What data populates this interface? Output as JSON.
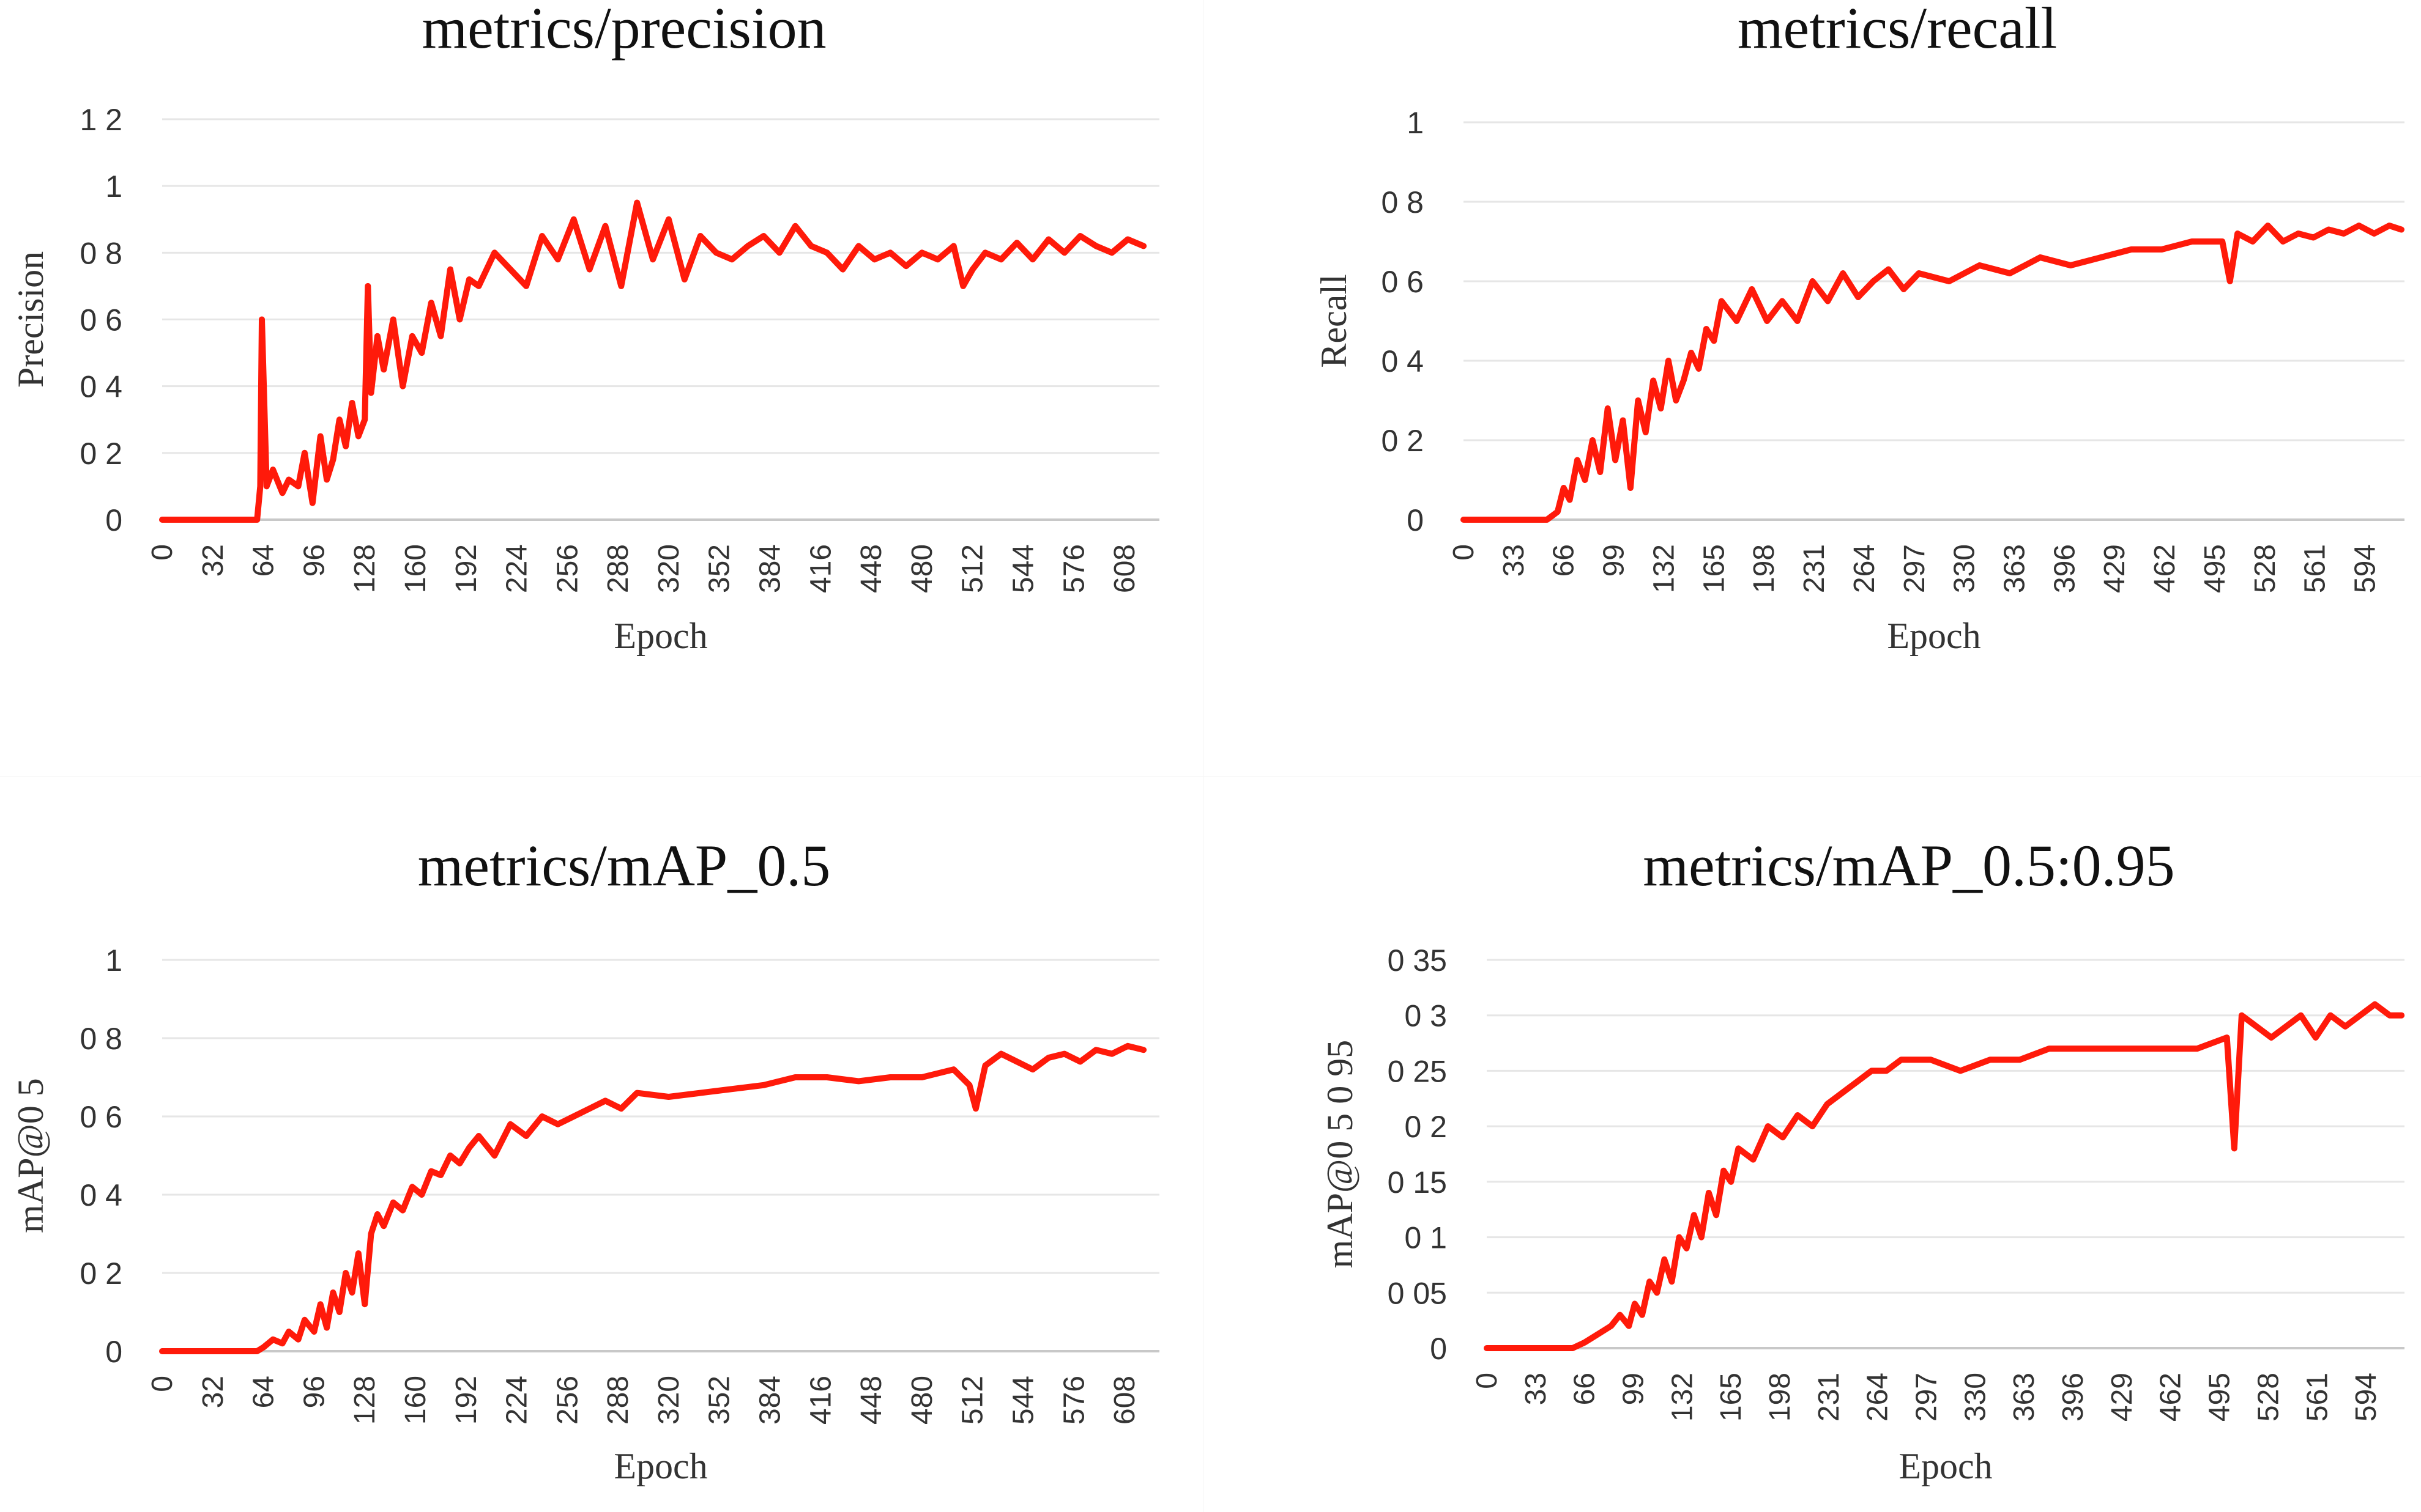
{
  "colors": {
    "line": "#ff1a0a",
    "grid": "#e6e6e6",
    "axis": "#c8c8c8",
    "text": "#333333",
    "title": "#111111"
  },
  "chart_data": [
    {
      "type": "line",
      "title": "metrics/precision",
      "xlabel": "Epoch",
      "ylabel": "Precision",
      "xlim": [
        0,
        630
      ],
      "ylim": [
        0,
        1.2
      ],
      "x_ticks": [
        "0",
        "32",
        "64",
        "96",
        "128",
        "160",
        "192",
        "224",
        "256",
        "288",
        "320",
        "352",
        "384",
        "416",
        "448",
        "480",
        "512",
        "544",
        "576",
        "608"
      ],
      "y_ticks": [
        "0",
        "0 2",
        "0 4",
        "0 6",
        "0 8",
        "1",
        "1 2"
      ],
      "y_tick_values": [
        0,
        0.2,
        0.4,
        0.6,
        0.8,
        1.0,
        1.2
      ],
      "series": [
        {
          "name": "Precision",
          "x": [
            0,
            60,
            62,
            63,
            66,
            70,
            76,
            80,
            86,
            90,
            95,
            100,
            104,
            108,
            112,
            116,
            120,
            124,
            128,
            130,
            132,
            136,
            140,
            146,
            152,
            158,
            164,
            170,
            176,
            182,
            188,
            194,
            200,
            210,
            220,
            230,
            240,
            250,
            260,
            270,
            280,
            290,
            300,
            310,
            320,
            330,
            340,
            350,
            360,
            370,
            380,
            390,
            400,
            410,
            420,
            430,
            440,
            450,
            460,
            470,
            480,
            490,
            500,
            506,
            512,
            520,
            530,
            540,
            550,
            560,
            570,
            580,
            590,
            600,
            610,
            620
          ],
          "y": [
            0,
            0,
            0.1,
            0.6,
            0.1,
            0.15,
            0.08,
            0.12,
            0.1,
            0.2,
            0.05,
            0.25,
            0.12,
            0.18,
            0.3,
            0.22,
            0.35,
            0.25,
            0.3,
            0.7,
            0.38,
            0.55,
            0.45,
            0.6,
            0.4,
            0.55,
            0.5,
            0.65,
            0.55,
            0.75,
            0.6,
            0.72,
            0.7,
            0.8,
            0.75,
            0.7,
            0.85,
            0.78,
            0.9,
            0.75,
            0.88,
            0.7,
            0.95,
            0.78,
            0.9,
            0.72,
            0.85,
            0.8,
            0.78,
            0.82,
            0.85,
            0.8,
            0.88,
            0.82,
            0.8,
            0.75,
            0.82,
            0.78,
            0.8,
            0.76,
            0.8,
            0.78,
            0.82,
            0.7,
            0.75,
            0.8,
            0.78,
            0.83,
            0.78,
            0.84,
            0.8,
            0.85,
            0.82,
            0.8,
            0.84,
            0.82
          ]
        }
      ]
    },
    {
      "type": "line",
      "title": "metrics/recall",
      "xlabel": "Epoch",
      "ylabel": "Recall",
      "xlim": [
        0,
        620
      ],
      "ylim": [
        0,
        1.0
      ],
      "x_ticks": [
        "0",
        "33",
        "66",
        "99",
        "132",
        "165",
        "198",
        "231",
        "264",
        "297",
        "330",
        "363",
        "396",
        "429",
        "462",
        "495",
        "528",
        "561",
        "594"
      ],
      "y_ticks": [
        "0",
        "0 2",
        "0 4",
        "0 6",
        "0 8",
        "1"
      ],
      "y_tick_values": [
        0,
        0.2,
        0.4,
        0.6,
        0.8,
        1.0
      ],
      "series": [
        {
          "name": "Recall",
          "x": [
            0,
            55,
            62,
            66,
            70,
            75,
            80,
            85,
            90,
            95,
            100,
            105,
            110,
            115,
            120,
            125,
            130,
            135,
            140,
            145,
            150,
            155,
            160,
            165,
            170,
            180,
            190,
            200,
            210,
            220,
            230,
            240,
            250,
            260,
            270,
            280,
            290,
            300,
            320,
            340,
            360,
            380,
            400,
            420,
            440,
            460,
            480,
            500,
            505,
            510,
            520,
            530,
            540,
            550,
            560,
            570,
            580,
            590,
            600,
            610,
            618
          ],
          "y": [
            0,
            0,
            0.02,
            0.08,
            0.05,
            0.15,
            0.1,
            0.2,
            0.12,
            0.28,
            0.15,
            0.25,
            0.08,
            0.3,
            0.22,
            0.35,
            0.28,
            0.4,
            0.3,
            0.35,
            0.42,
            0.38,
            0.48,
            0.45,
            0.55,
            0.5,
            0.58,
            0.5,
            0.55,
            0.5,
            0.6,
            0.55,
            0.62,
            0.56,
            0.6,
            0.63,
            0.58,
            0.62,
            0.6,
            0.64,
            0.62,
            0.66,
            0.64,
            0.66,
            0.68,
            0.68,
            0.7,
            0.7,
            0.6,
            0.72,
            0.7,
            0.74,
            0.7,
            0.72,
            0.71,
            0.73,
            0.72,
            0.74,
            0.72,
            0.74,
            0.73
          ]
        }
      ]
    },
    {
      "type": "line",
      "title": "metrics/mAP_0.5",
      "xlabel": "Epoch",
      "ylabel": "mAP@0 5",
      "xlim": [
        0,
        630
      ],
      "ylim": [
        0,
        1.0
      ],
      "x_ticks": [
        "0",
        "32",
        "64",
        "96",
        "128",
        "160",
        "192",
        "224",
        "256",
        "288",
        "320",
        "352",
        "384",
        "416",
        "448",
        "480",
        "512",
        "544",
        "576",
        "608"
      ],
      "y_ticks": [
        "0",
        "0 2",
        "0 4",
        "0 6",
        "0 8",
        "1"
      ],
      "y_tick_values": [
        0,
        0.2,
        0.4,
        0.6,
        0.8,
        1.0
      ],
      "series": [
        {
          "name": "mAP@0.5",
          "x": [
            0,
            60,
            64,
            70,
            76,
            80,
            86,
            90,
            96,
            100,
            104,
            108,
            112,
            116,
            120,
            124,
            128,
            132,
            136,
            140,
            146,
            152,
            158,
            164,
            170,
            176,
            182,
            188,
            194,
            200,
            210,
            220,
            230,
            240,
            250,
            260,
            270,
            280,
            290,
            300,
            320,
            340,
            360,
            380,
            400,
            420,
            440,
            460,
            480,
            500,
            510,
            514,
            520,
            530,
            540,
            550,
            560,
            570,
            580,
            590,
            600,
            610,
            620
          ],
          "y": [
            0,
            0,
            0.01,
            0.03,
            0.02,
            0.05,
            0.03,
            0.08,
            0.05,
            0.12,
            0.06,
            0.15,
            0.1,
            0.2,
            0.15,
            0.25,
            0.12,
            0.3,
            0.35,
            0.32,
            0.38,
            0.36,
            0.42,
            0.4,
            0.46,
            0.45,
            0.5,
            0.48,
            0.52,
            0.55,
            0.5,
            0.58,
            0.55,
            0.6,
            0.58,
            0.6,
            0.62,
            0.64,
            0.62,
            0.66,
            0.65,
            0.66,
            0.67,
            0.68,
            0.7,
            0.7,
            0.69,
            0.7,
            0.7,
            0.72,
            0.68,
            0.62,
            0.73,
            0.76,
            0.74,
            0.72,
            0.75,
            0.76,
            0.74,
            0.77,
            0.76,
            0.78,
            0.77
          ]
        }
      ]
    },
    {
      "type": "line",
      "title": "metrics/mAP_0.5:0.95",
      "xlabel": "Epoch",
      "ylabel": "mAP@0 5 0 95",
      "xlim": [
        0,
        620
      ],
      "ylim": [
        0,
        0.35
      ],
      "x_ticks": [
        "0",
        "33",
        "66",
        "99",
        "132",
        "165",
        "198",
        "231",
        "264",
        "297",
        "330",
        "363",
        "396",
        "429",
        "462",
        "495",
        "528",
        "561",
        "594"
      ],
      "y_ticks": [
        "0",
        "0 05",
        "0 1",
        "0 15",
        "0 2",
        "0 25",
        "0 3",
        "0 35"
      ],
      "y_tick_values": [
        0,
        0.05,
        0.1,
        0.15,
        0.2,
        0.25,
        0.3,
        0.35
      ],
      "series": [
        {
          "name": "mAP@0.5:0.95",
          "x": [
            0,
            58,
            66,
            72,
            78,
            84,
            90,
            96,
            100,
            105,
            110,
            115,
            120,
            125,
            130,
            135,
            140,
            145,
            150,
            155,
            160,
            165,
            170,
            180,
            190,
            200,
            210,
            220,
            230,
            240,
            250,
            260,
            270,
            280,
            290,
            300,
            320,
            340,
            360,
            380,
            400,
            420,
            440,
            460,
            480,
            500,
            505,
            510,
            520,
            530,
            540,
            550,
            560,
            570,
            580,
            590,
            600,
            610,
            618
          ],
          "y": [
            0,
            0,
            0.005,
            0.01,
            0.015,
            0.02,
            0.03,
            0.02,
            0.04,
            0.03,
            0.06,
            0.05,
            0.08,
            0.06,
            0.1,
            0.09,
            0.12,
            0.1,
            0.14,
            0.12,
            0.16,
            0.15,
            0.18,
            0.17,
            0.2,
            0.19,
            0.21,
            0.2,
            0.22,
            0.23,
            0.24,
            0.25,
            0.25,
            0.26,
            0.26,
            0.26,
            0.25,
            0.26,
            0.26,
            0.27,
            0.27,
            0.27,
            0.27,
            0.27,
            0.27,
            0.28,
            0.18,
            0.3,
            0.29,
            0.28,
            0.29,
            0.3,
            0.28,
            0.3,
            0.29,
            0.3,
            0.31,
            0.3,
            0.3
          ]
        }
      ]
    }
  ]
}
